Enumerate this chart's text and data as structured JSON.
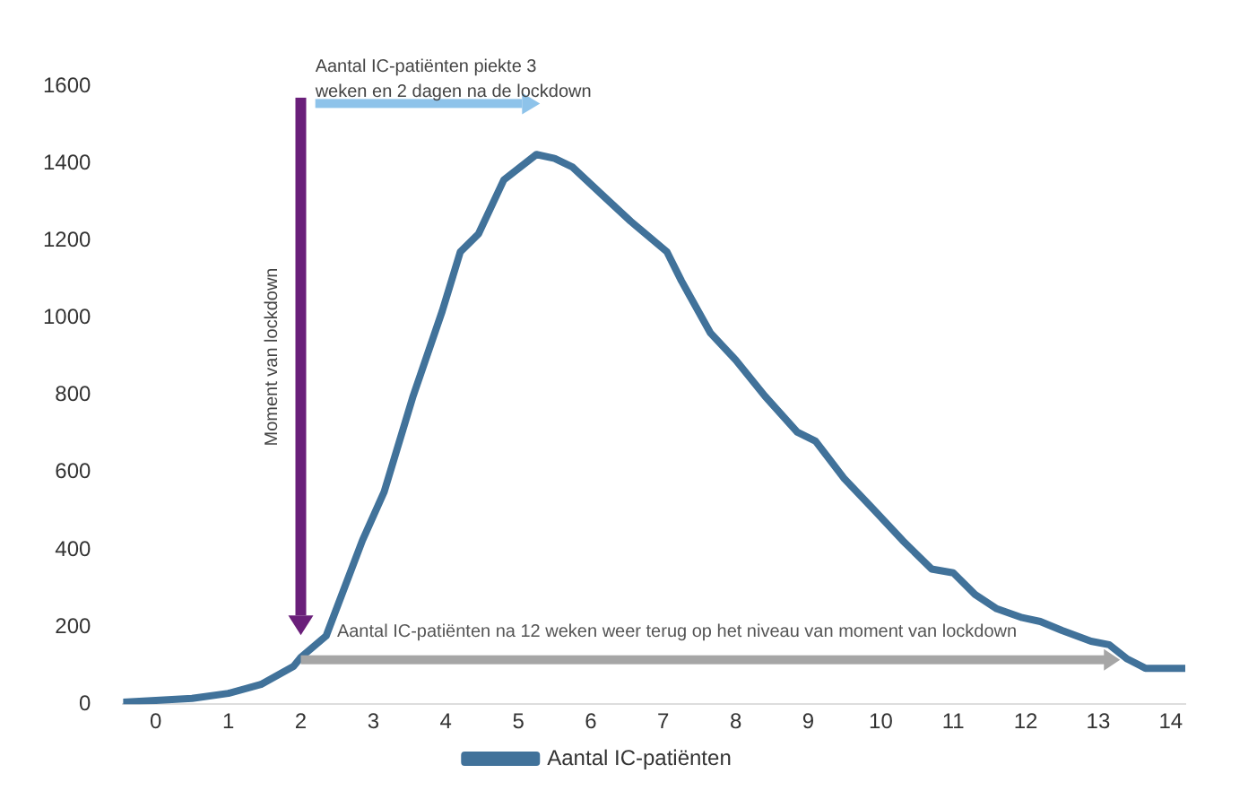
{
  "chart_data": {
    "type": "line",
    "x": [
      -0.45,
      0,
      0.5,
      1,
      1.45,
      1.9,
      2,
      2.35,
      2.85,
      3.15,
      3.55,
      3.95,
      4.2,
      4.45,
      4.8,
      5.25,
      5.5,
      5.75,
      6.2,
      6.55,
      7.05,
      7.25,
      7.65,
      8,
      8.4,
      8.85,
      9.1,
      9.5,
      9.9,
      10.3,
      10.7,
      11,
      11.3,
      11.6,
      11.95,
      12.2,
      12.5,
      12.9,
      13.15,
      13.4,
      13.65,
      14.2
    ],
    "series": [
      {
        "name": "Aantal IC-patiënten",
        "color": "#41729a",
        "values": [
          5,
          10,
          15,
          28,
          51,
          98,
          121,
          177,
          424,
          550,
          798,
          1017,
          1171,
          1217,
          1357,
          1423,
          1413,
          1390,
          1311,
          1250,
          1171,
          1096,
          961,
          891,
          798,
          704,
          681,
          583,
          504,
          424,
          350,
          340,
          284,
          247,
          224,
          214,
          191,
          163,
          154,
          117,
          93,
          93
        ]
      }
    ],
    "xlim": [
      -0.45,
      14.2
    ],
    "xticks": [
      0,
      1,
      2,
      3,
      4,
      5,
      6,
      7,
      8,
      9,
      10,
      11,
      12,
      13,
      14
    ],
    "ylim": [
      0,
      1600
    ],
    "yticks": [
      0,
      200,
      400,
      600,
      800,
      1000,
      1200,
      1400,
      1600
    ],
    "grid": false,
    "legend": "bottom",
    "marker": "none",
    "line_style": "solid",
    "annotations": [
      "Aantal IC-patiënten piekte 3\nweken en 2 dagen na de lockdown",
      "Moment van lockdown",
      "Aantal IC-patiënten na 12 weken weer terug op het niveau van moment van lockdown"
    ]
  }
}
